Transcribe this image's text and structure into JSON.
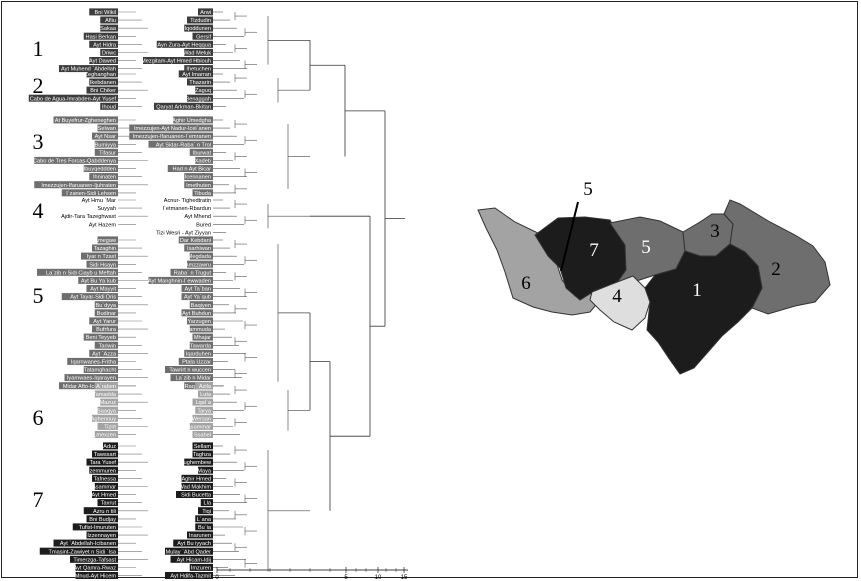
{
  "colors": {
    "black": "#1c1c1c",
    "dark_gray": "#3c3c3c",
    "mid_gray": "#6e6e6e",
    "light_gray": "#a3a3a3",
    "pale_gray": "#dedede",
    "white": "#ffffff"
  },
  "axis": {
    "ticks": [
      "0",
      "5",
      "10",
      "15"
    ]
  },
  "groups": [
    {
      "id": "1",
      "shade": "dark_gray",
      "left": [
        "Bni Wikil",
        "Afliu",
        "Sakaa",
        "Hasi Berkan",
        "Ayt Hidra",
        "Driwc",
        "Ayt Dawed",
        "Ayt Muhend `Abdellah"
      ],
      "right": [
        "Arwi",
        "Tizdudin",
        "Iqoddunen",
        "Gersif",
        "Ayn Zura-Ayt Heqqua",
        "Wad Meluk",
        "Mezgitam-Ayt Hmed Hbiouh",
        "Ihetuchen"
      ]
    },
    {
      "id": "2",
      "shade": "dark_gray",
      "left": [
        "Zeghanghan",
        "Ikebdanen",
        "Bni Chiker",
        "Cabo de Agua-Imrabden-Ayt Yusef",
        "Ihoud"
      ],
      "right": [
        "Ayt Imarran",
        "Thazarin",
        "Zaguq",
        "Benaggah",
        "Qaryat Arkman-Bkitan"
      ]
    },
    {
      "id": "3",
      "shade": "mid_gray",
      "left": [
        "At Buyefrur-Zgheneghen",
        "Selwan",
        "Ayt Nsar",
        "Bumiyya",
        "Tifasur",
        "Cabo de Tres Forcas-Qabddenya",
        "Ibuyqeddden",
        "Ihninaten",
        "Imezzujen-Ifaruanen-Ijuhraten",
        "I`zanen-Sidi Lehsen"
      ],
      "right": [
        "Aghir Umedgha",
        "Imezzujen-Ayt Nadur-Icei`anen",
        "Imezzujen-Ifaruanen-I`emranen",
        "Ayt Sidar-Raba` n Trol",
        "Iburwat",
        "Xadeb",
        "Had n Ayt Bicar",
        "Icennanen",
        "Imethuten",
        "Tibuda"
      ]
    },
    {
      "id": "4",
      "shade": "pale_gray",
      "left": [
        "Ayt Hmu `Mar",
        "Suyyah",
        "Ajdir-Tara Tazeghwaxt",
        "Ayt Hazem"
      ],
      "right": [
        "Acnur- Tighedtratin",
        "I`etmanen-Rbardun",
        "Ayt Mhend",
        "Bured",
        "Tizi Wesri - Ayt Ziyyan"
      ]
    },
    {
      "id": "5",
      "shade": "mid_gray",
      "left": [
        "Amegaw",
        "Tazaghin",
        "Iyar n Tzaxt",
        "Sidi Hsayn",
        "La`zib n Sidi Ciayb u Meftah",
        "Ayt Bu Ya`kub",
        "Ayt Mayyit",
        "Ayt Tayar-Sidi Dris",
        "Bu`dyya",
        "Budinar",
        "Ayt Yarur",
        "Bufrfura",
        "Beni Teyyeb",
        "Tariwin",
        "Ayt `Azza",
        "Iqarnwanes-Fritha",
        "Tatamghacht",
        "Iyarnwaes-Iqarayen",
        "Midar Afto-Icennuden"
      ],
      "right": [
        "Dar Kebdani",
        "Isarhiwan",
        "Megdada",
        "Amzzawru",
        "Raba` n Trugut",
        "Ayt Manghnin-I`ewwaden",
        "Ayt Ta`ban",
        "Ayt Ya`qub",
        "Baqiyen",
        "Ayt Buhdun",
        "Yarzugen",
        "Hammuda",
        "Mhajar",
        "Tawarda",
        "Iqarduhen",
        "Ptala Uzzar",
        "Tawrirt n wuccen",
        "La`zib n Midar",
        "Raq Aziaw"
      ]
    },
    {
      "id": "6",
      "shade": "light_gray",
      "left": [
        "A`raben",
        "Tamadda",
        "Mazuz",
        "Saaqya",
        "Aghennuy",
        "Tizirt",
        "Lmexzen"
      ],
      "right": [
        "Azila",
        "Luta",
        "Lqal`a",
        "Tarya",
        "Wersan",
        "Asammar",
        "Ssahel"
      ]
    },
    {
      "id": "7",
      "shade": "black",
      "left": [
        "Aduz",
        "Tawssart",
        "Tara Yusef",
        "Izemmuren",
        "Tafnessa",
        "Asammar",
        "Ayt Hmed",
        "Taxrut",
        "Azru n tili",
        "Bni Budjay",
        "Tufist-Imuruten",
        "Izzennayen",
        "Ayt `Abdellah-Icibanen",
        "Tmasint-Zawiyet n Sidi `Isa",
        "Timerzga-Tafsast",
        "Ayt Qamra-Rwaz",
        "Mnud-Ayt Hicem"
      ],
      "right": [
        "Sellam",
        "Taghza",
        "Bughembew",
        "Maya",
        "Aghir Hmed",
        "Wad Makhim",
        "Sidi Bucetta",
        "Lla",
        "Tiqi",
        "L`ana",
        "Bu`ia",
        "Inarunen",
        "Ayt Bu iyyach",
        "Mulay `Abd Qader",
        "Ayt Hicam-Idij",
        "Imzuren",
        "Ayt Hdifa-Tazmit"
      ]
    }
  ],
  "map": {
    "labels": [
      "1",
      "2",
      "3",
      "4",
      "5",
      "6",
      "7",
      "5"
    ]
  }
}
